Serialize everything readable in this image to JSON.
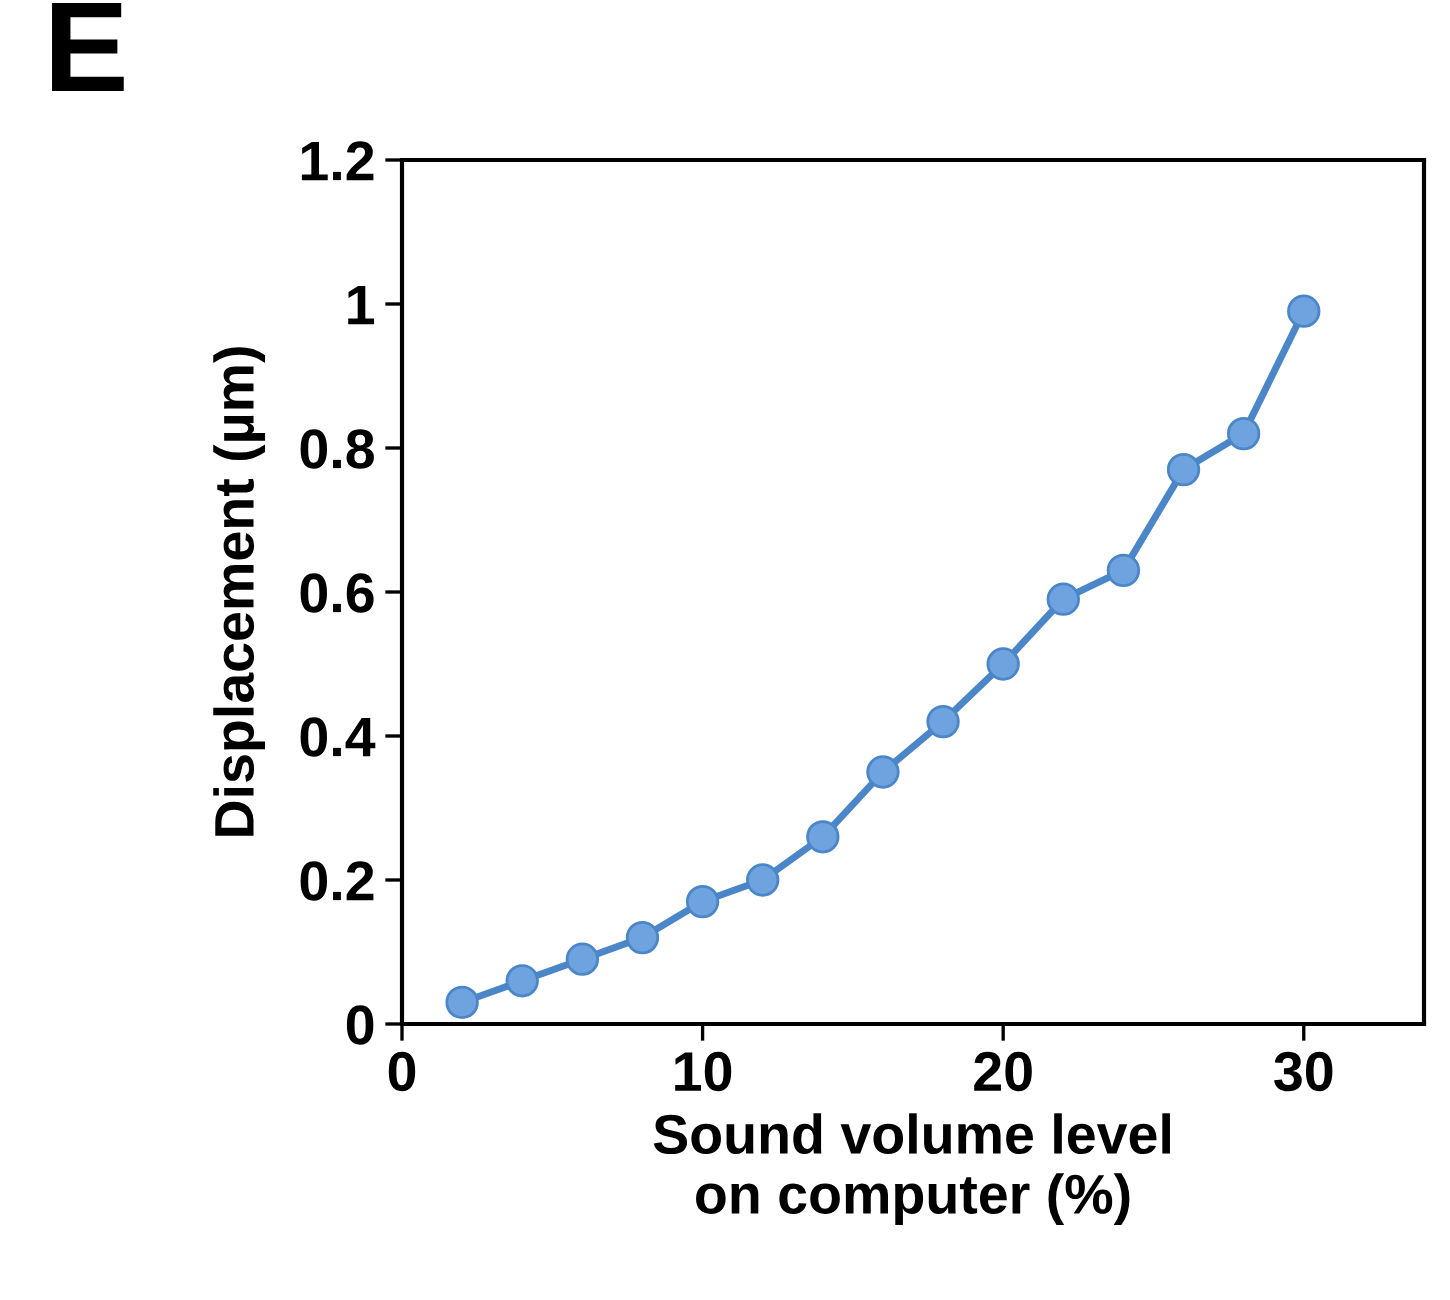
{
  "chart_data": {
    "type": "line",
    "xlabel": "Sound volume level\non computer (%)",
    "ylabel": "Displacement (µm)",
    "annotations": [
      "E"
    ],
    "x": [
      2,
      4,
      6,
      8,
      10,
      12,
      14,
      16,
      18,
      20,
      22,
      24,
      26,
      28,
      30
    ],
    "series": [
      {
        "color": "#4a86c8",
        "values": [
          0.03,
          0.06,
          0.09,
          0.12,
          0.17,
          0.2,
          0.26,
          0.35,
          0.42,
          0.5,
          0.59,
          0.63,
          0.77,
          0.82,
          0.99
        ]
      }
    ],
    "xlim": [
      0,
      34
    ],
    "ylim": [
      0,
      1.2
    ],
    "xticks": [
      0,
      10,
      20,
      30
    ],
    "yticks": [
      0,
      0.2,
      0.4,
      0.6,
      0.8,
      1,
      1.2
    ],
    "grid": false,
    "legend": false,
    "marker": "circle",
    "line_style": "solid"
  }
}
